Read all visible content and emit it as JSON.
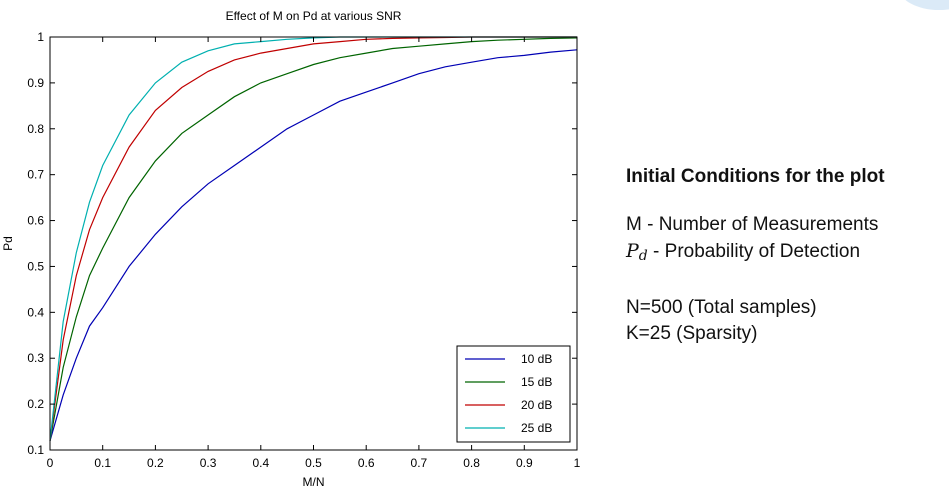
{
  "chart_data": {
    "type": "line",
    "title": "Effect of M on Pd at various SNR",
    "xlabel": "M/N",
    "ylabel": "Pd",
    "xlim": [
      0,
      1
    ],
    "ylim": [
      0.1,
      1
    ],
    "xticks": [
      "0",
      "0.1",
      "0.2",
      "0.3",
      "0.4",
      "0.5",
      "0.6",
      "0.7",
      "0.8",
      "0.9",
      "1"
    ],
    "yticks": [
      "0.1",
      "0.2",
      "0.3",
      "0.4",
      "0.5",
      "0.6",
      "0.7",
      "0.8",
      "0.9",
      "1"
    ],
    "grid": false,
    "legend": "bottom-right",
    "x": [
      0,
      0.025,
      0.05,
      0.075,
      0.1,
      0.15,
      0.2,
      0.25,
      0.3,
      0.35,
      0.4,
      0.45,
      0.5,
      0.55,
      0.6,
      0.65,
      0.7,
      0.75,
      0.8,
      0.85,
      0.9,
      0.95,
      1
    ],
    "series": [
      {
        "name": "10 dB",
        "color": "#0000b4",
        "values": [
          0.12,
          0.22,
          0.3,
          0.37,
          0.41,
          0.5,
          0.57,
          0.63,
          0.68,
          0.72,
          0.76,
          0.8,
          0.83,
          0.86,
          0.88,
          0.9,
          0.92,
          0.935,
          0.945,
          0.955,
          0.96,
          0.967,
          0.972
        ]
      },
      {
        "name": "15 dB",
        "color": "#006400",
        "values": [
          0.12,
          0.28,
          0.39,
          0.48,
          0.54,
          0.65,
          0.73,
          0.79,
          0.83,
          0.87,
          0.9,
          0.92,
          0.94,
          0.955,
          0.965,
          0.975,
          0.98,
          0.985,
          0.99,
          0.993,
          0.995,
          0.997,
          0.998
        ]
      },
      {
        "name": "20 dB",
        "color": "#c00000",
        "values": [
          0.12,
          0.34,
          0.48,
          0.58,
          0.65,
          0.76,
          0.84,
          0.89,
          0.925,
          0.95,
          0.965,
          0.975,
          0.985,
          0.99,
          0.995,
          0.997,
          0.998,
          0.999,
          1.0,
          1.0,
          1.0,
          1.0,
          1.0
        ]
      },
      {
        "name": "25 dB",
        "color": "#00b0b0",
        "values": [
          0.12,
          0.38,
          0.53,
          0.64,
          0.72,
          0.83,
          0.9,
          0.945,
          0.97,
          0.985,
          0.99,
          0.995,
          0.998,
          1.0,
          1.0,
          1.0,
          1.0,
          1.0,
          1.0,
          1.0,
          1.0,
          1.0,
          1.0
        ]
      }
    ]
  },
  "notes": {
    "heading": "Initial Conditions for the plot",
    "line1": "M - Number of  Measurements",
    "pd_symbol": "P",
    "pd_subscript": "d",
    "line2_rest": " - Probability of Detection",
    "line3": "N=500 (Total samples)",
    "line4": "K=25 (Sparsity)"
  }
}
